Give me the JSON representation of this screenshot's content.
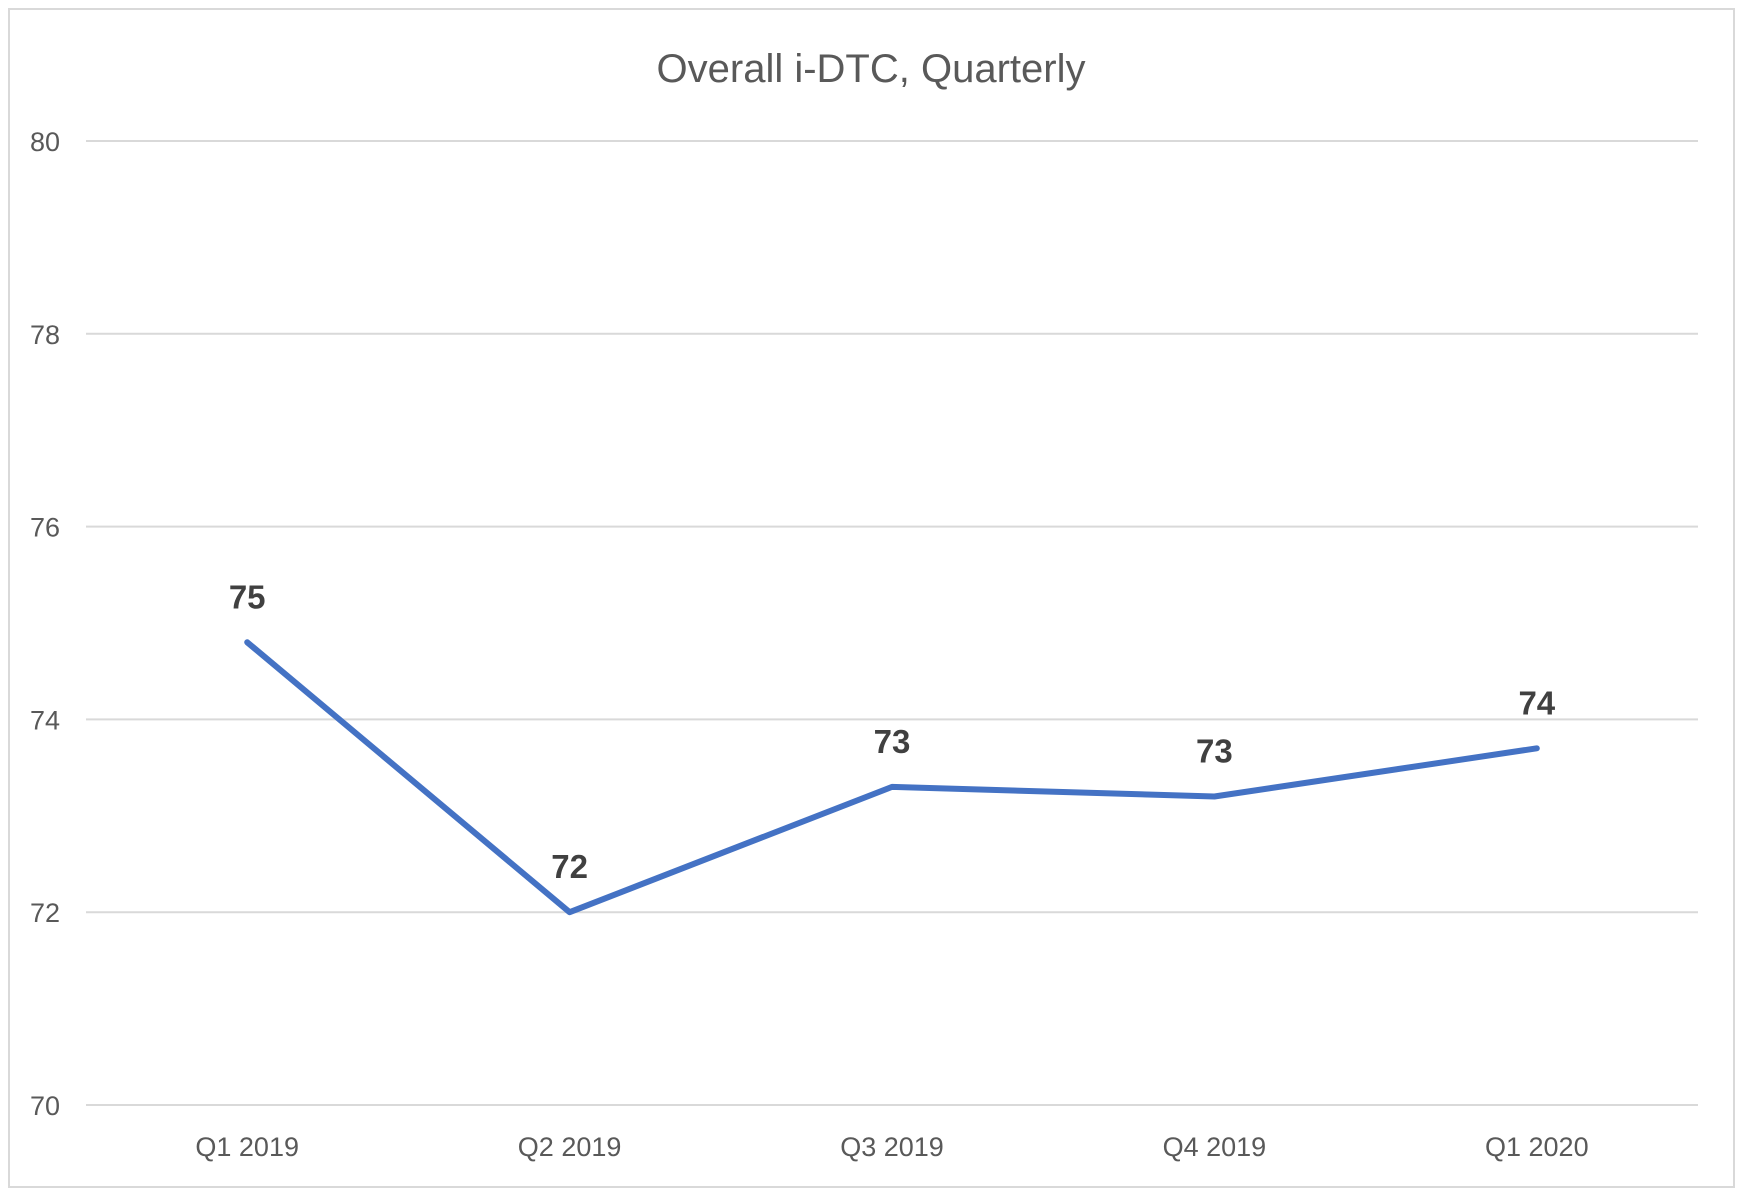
{
  "chart_data": {
    "type": "line",
    "title": "Overall i-DTC, Quarterly",
    "xlabel": "",
    "ylabel": "",
    "categories": [
      "Q1 2019",
      "Q2 2019",
      "Q3 2019",
      "Q4 2019",
      "Q1 2020"
    ],
    "series": [
      {
        "values": [
          74.8,
          72.0,
          73.3,
          73.2,
          73.7
        ],
        "data_labels": [
          "75",
          "72",
          "73",
          "73",
          "74"
        ],
        "color": "#4472C4"
      }
    ],
    "ylim": [
      70,
      80
    ],
    "yticks": [
      "70",
      "72",
      "74",
      "76",
      "78",
      "80"
    ],
    "grid": true,
    "legend": "none",
    "colors": {
      "line": "#4472C4",
      "gridline": "#d9d9d9",
      "tick_text": "#595959",
      "title_text": "#595959",
      "data_label_text": "#404040",
      "border": "#d9d9d9"
    }
  }
}
